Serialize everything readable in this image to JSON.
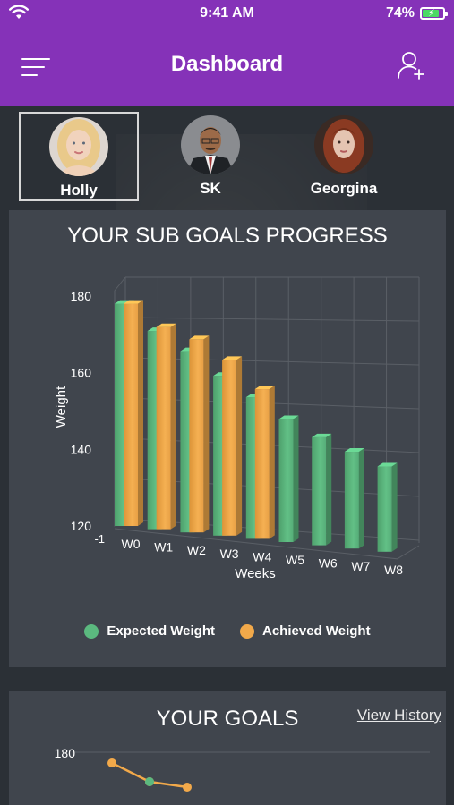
{
  "status_bar": {
    "time": "9:41 AM",
    "battery": "74%",
    "battery_level": 0.74
  },
  "header": {
    "title": "Dashboard",
    "menu_icon": "hamburger-menu-icon",
    "add_icon": "add-user-icon"
  },
  "profiles": [
    {
      "name": "Holly",
      "selected": true
    },
    {
      "name": "SK",
      "selected": false
    },
    {
      "name": "Georgina",
      "selected": false
    }
  ],
  "sub_goals": {
    "title": "YOUR SUB GOALS PROGRESS",
    "chart_data": {
      "type": "bar",
      "title": "YOUR SUB GOALS PROGRESS",
      "xlabel": "Weeks",
      "ylabel": "Weight",
      "categories": [
        "W0",
        "W1",
        "W2",
        "W3",
        "W4",
        "W5",
        "W6",
        "W7",
        "W8"
      ],
      "series": [
        {
          "name": "Expected Weight",
          "color": "#5bb97f",
          "values": [
            178,
            171,
            166,
            160,
            155,
            150,
            146,
            143,
            140
          ]
        },
        {
          "name": "Achieved Weight",
          "color": "#f2a94a",
          "values": [
            178,
            172,
            169,
            164,
            157,
            null,
            null,
            null,
            null
          ]
        }
      ],
      "yticks": [
        "180",
        "160",
        "140",
        "120"
      ],
      "ylim": [
        120,
        180
      ],
      "extra_tick": "-1",
      "grid": true,
      "legend_position": "bottom"
    }
  },
  "goals": {
    "title": "YOUR GOALS",
    "link": "View History",
    "chart_data": {
      "type": "line",
      "yticks": [
        "180"
      ],
      "series": [
        {
          "color": "#f2a94a",
          "values": [
            177,
            170,
            168
          ]
        },
        {
          "color": "#5bb97f",
          "values": [
            null,
            170,
            null
          ]
        }
      ]
    }
  }
}
